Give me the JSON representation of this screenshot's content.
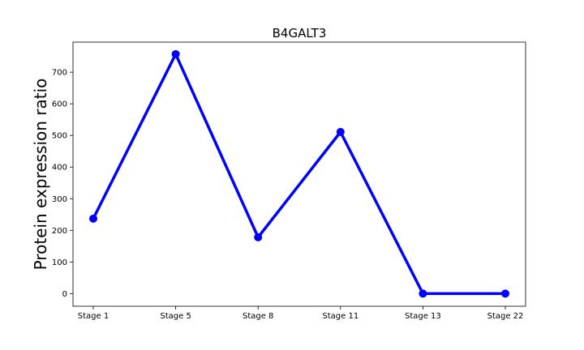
{
  "chart_data": {
    "type": "line",
    "title": "B4GALT3",
    "xlabel": "",
    "ylabel": "Protein expression ratio",
    "categories": [
      "Stage 1",
      "Stage 5",
      "Stage 8",
      "Stage 11",
      "Stage 13",
      "Stage 22"
    ],
    "series": [
      {
        "values": [
          237,
          757,
          178,
          511,
          0,
          0
        ]
      }
    ],
    "ylim": [
      -40,
      795
    ],
    "yticks": [
      0,
      100,
      200,
      300,
      400,
      500,
      600,
      700
    ],
    "grid": false,
    "line_color": "#0000ff",
    "marker_color": "#0000ff"
  }
}
